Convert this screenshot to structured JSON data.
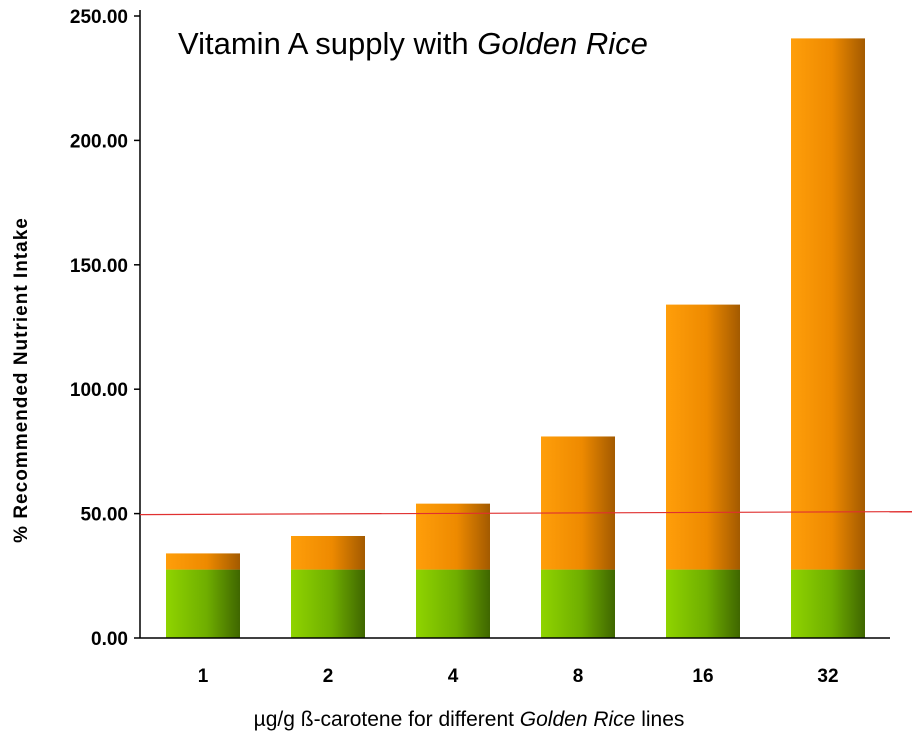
{
  "chart_data": {
    "type": "bar",
    "stacked": true,
    "title": {
      "prefix": "Vitamin A supply with ",
      "emphasis": "Golden Rice"
    },
    "xlabel": {
      "prefix": "µg/g ß-carotene for different ",
      "emphasis": "Golden Rice",
      "suffix": " lines"
    },
    "ylabel": "% Recommended Nutrient Intake",
    "categories": [
      "1",
      "2",
      "4",
      "8",
      "16",
      "32"
    ],
    "series": [
      {
        "color": "#7ab800",
        "values": [
          27.5,
          27.5,
          27.5,
          27.5,
          27.5,
          27.5
        ]
      },
      {
        "color": "#f08c00",
        "values": [
          6.5,
          13.5,
          26.5,
          53.5,
          106.5,
          213.5
        ]
      }
    ],
    "ylim": [
      0,
      250
    ],
    "yticks": [
      "0.00",
      "50.00",
      "100.00",
      "150.00",
      "200.00",
      "250.00"
    ],
    "reference_line": {
      "value": 50,
      "color": "#e03030"
    },
    "grid": false,
    "legend": "none"
  }
}
